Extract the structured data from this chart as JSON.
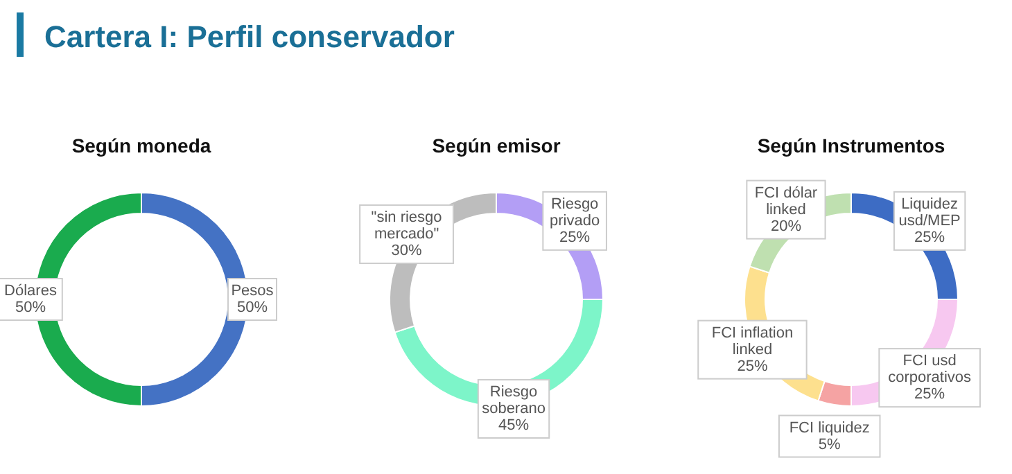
{
  "chart_data": [
    {
      "type": "other",
      "title": "Cartera I: Perfil conservador"
    },
    {
      "type": "donut",
      "title": "Según moneda",
      "categories": [
        "Pesos",
        "Dólares"
      ],
      "values": [
        50,
        50
      ],
      "colors": [
        "#4472c4",
        "#1aab4e"
      ],
      "value_labels": [
        "50%",
        "50%"
      ]
    },
    {
      "type": "donut",
      "title": "Según emisor",
      "categories": [
        "Riesgo privado",
        "Riesgo soberano",
        "\"sin riesgo mercado\""
      ],
      "values": [
        25,
        45,
        30
      ],
      "colors": [
        "#b39ef5",
        "#7df5c9",
        "#bdbdbd"
      ],
      "value_labels": [
        "25%",
        "45%",
        "30%"
      ]
    },
    {
      "type": "donut",
      "title": "Según Instrumentos",
      "categories": [
        "Liquidez usd/MEP",
        "FCI usd corporativos",
        "FCI liquidez",
        "FCI inflation linked",
        "FCI dólar linked"
      ],
      "values": [
        25,
        25,
        5,
        25,
        20
      ],
      "colors": [
        "#3d6cc4",
        "#f7c8f0",
        "#f5a3a3",
        "#fde08e",
        "#bfe0b0"
      ],
      "value_labels": [
        "25%",
        "25%",
        "5%",
        "25%",
        "20%"
      ]
    }
  ]
}
